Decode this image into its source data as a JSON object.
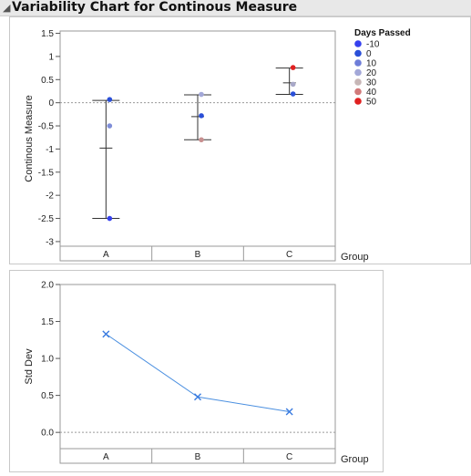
{
  "header": {
    "title": "Variability Chart for Continous Measure"
  },
  "chart_data": [
    {
      "type": "scatter",
      "title": "",
      "xlabel": "Group",
      "ylabel": "Continous Measure",
      "categories": [
        "A",
        "B",
        "C"
      ],
      "ylim": [
        -3.1,
        1.55
      ],
      "yticks": [
        1.5,
        1,
        0.5,
        0,
        -0.5,
        -1,
        -1.5,
        -2,
        -2.5,
        -3
      ],
      "ytick_labels": [
        "1.5",
        "1",
        "0.5",
        "0",
        "-0.5",
        "-1",
        "-1.5",
        "-2",
        "-2.5",
        "-3"
      ],
      "reference_line": 0,
      "legend": {
        "title": "Days Passed",
        "placement": "right",
        "entries": [
          {
            "label": "-10",
            "color": "#3540ee"
          },
          {
            "label": "0",
            "color": "#2a4fd8"
          },
          {
            "label": "10",
            "color": "#6e7dd8"
          },
          {
            "label": "20",
            "color": "#a3a8d8"
          },
          {
            "label": "30",
            "color": "#c7b7b7"
          },
          {
            "label": "40",
            "color": "#d17a7a"
          },
          {
            "label": "50",
            "color": "#e02020"
          }
        ]
      },
      "groups": [
        {
          "category": "A",
          "min": -2.5,
          "max": 0.05,
          "mean": -0.98,
          "points": [
            {
              "y": 0.07,
              "color": "#2a4fd8"
            },
            {
              "y": -0.5,
              "color": "#7f8ed8"
            },
            {
              "y": -2.5,
              "color": "#3540ee"
            }
          ]
        },
        {
          "category": "B",
          "min": -0.8,
          "max": 0.17,
          "mean": -0.3,
          "points": [
            {
              "y": 0.18,
              "color": "#a3a8d8"
            },
            {
              "y": -0.28,
              "color": "#2a4fd8"
            },
            {
              "y": -0.8,
              "color": "#c89090"
            }
          ]
        },
        {
          "category": "C",
          "min": 0.18,
          "max": 0.75,
          "mean": 0.43,
          "points": [
            {
              "y": 0.76,
              "color": "#e02020"
            },
            {
              "y": 0.4,
              "color": "#a8a8c8"
            },
            {
              "y": 0.19,
              "color": "#2a4fd8"
            }
          ]
        }
      ]
    },
    {
      "type": "line",
      "title": "",
      "xlabel": "Group",
      "ylabel": "Std Dev",
      "categories": [
        "A",
        "B",
        "C"
      ],
      "values": [
        1.33,
        0.48,
        0.28
      ],
      "ylim": [
        -0.22,
        2.0
      ],
      "yticks": [
        2.0,
        1.5,
        1.0,
        0.5,
        0.0
      ],
      "ytick_labels": [
        "2.0",
        "1.5",
        "1.0",
        "0.5",
        "0.0"
      ],
      "reference_line": 0,
      "line_color": "#4a8fe0"
    }
  ]
}
